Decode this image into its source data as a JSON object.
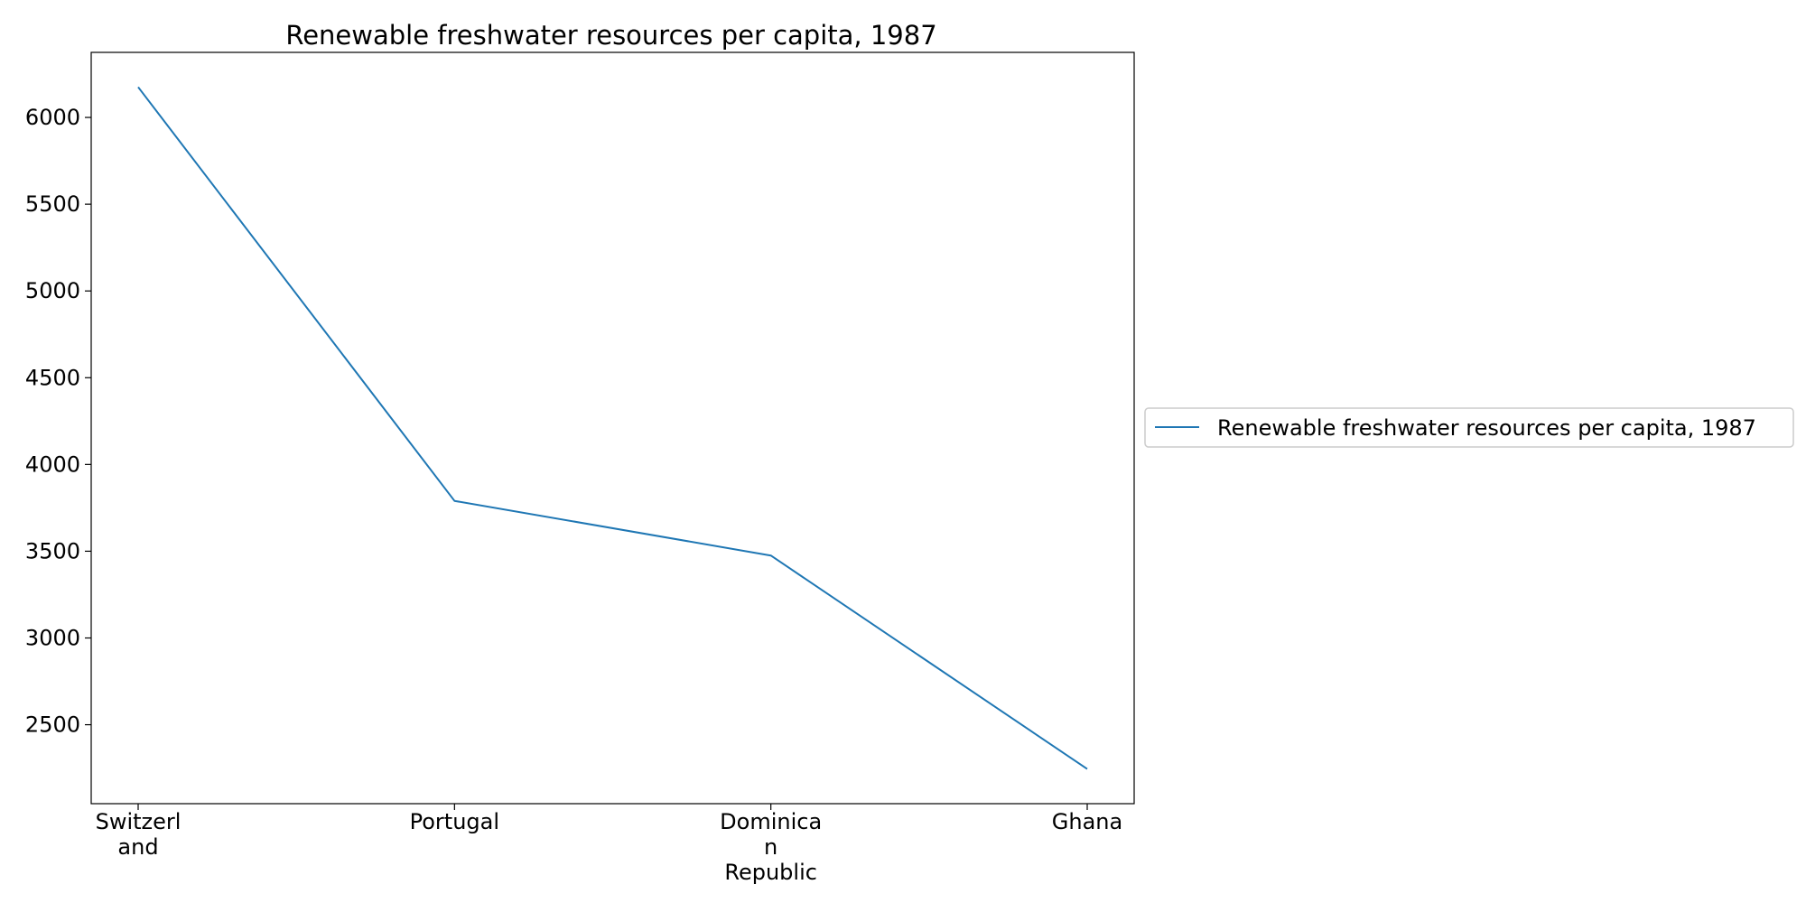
{
  "chart_data": {
    "type": "line",
    "title": "Renewable freshwater resources per capita, 1987",
    "xlabel": "",
    "ylabel": "",
    "categories": [
      "Switzerland",
      "Portugal",
      "Dominican Republic",
      "Ghana"
    ],
    "category_tick_lines": [
      [
        "Switzerl",
        "and"
      ],
      [
        "Portugal"
      ],
      [
        "Dominica",
        "n",
        "Republic"
      ],
      [
        "Ghana"
      ]
    ],
    "series": [
      {
        "name": "Renewable freshwater resources per capita, 1987",
        "values": [
          6175,
          3790,
          3475,
          2245
        ],
        "color": "#1f77b4"
      }
    ],
    "ylim": [
      2045,
      6375
    ],
    "yticks": [
      2500,
      3000,
      3500,
      4000,
      4500,
      5000,
      5500,
      6000
    ],
    "grid": false,
    "legend_position": "right"
  }
}
